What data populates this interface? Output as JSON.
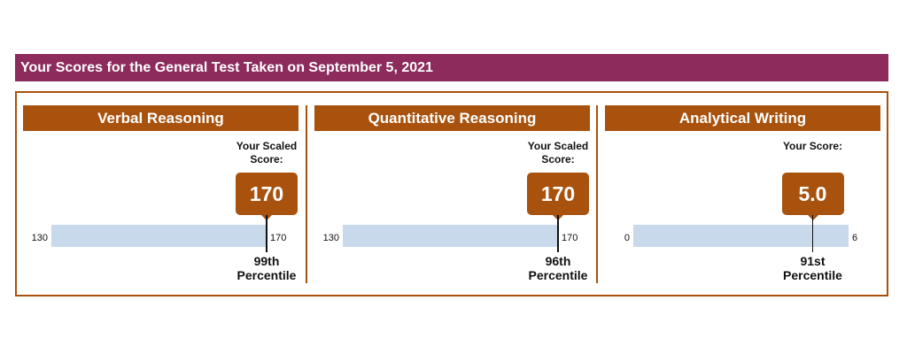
{
  "header": {
    "title": "Your Scores for the General Test Taken on September 5, 2021"
  },
  "panels": [
    {
      "title": "Verbal Reasoning",
      "score_label": "Your Scaled Score:",
      "score": 170,
      "min": 130,
      "max": 170,
      "percentile": "99th",
      "percentile_label": "Percentile"
    },
    {
      "title": "Quantitative Reasoning",
      "score_label": "Your Scaled Score:",
      "score": 170,
      "min": 130,
      "max": 170,
      "percentile": "96th",
      "percentile_label": "Percentile"
    },
    {
      "title": "Analytical Writing",
      "score_label": "Your Score:",
      "score": {
        "value": 5,
        "label": "5.0"
      },
      "min": 0,
      "max": 6,
      "percentile": "91st",
      "percentile_label": "Percentile"
    }
  ]
}
